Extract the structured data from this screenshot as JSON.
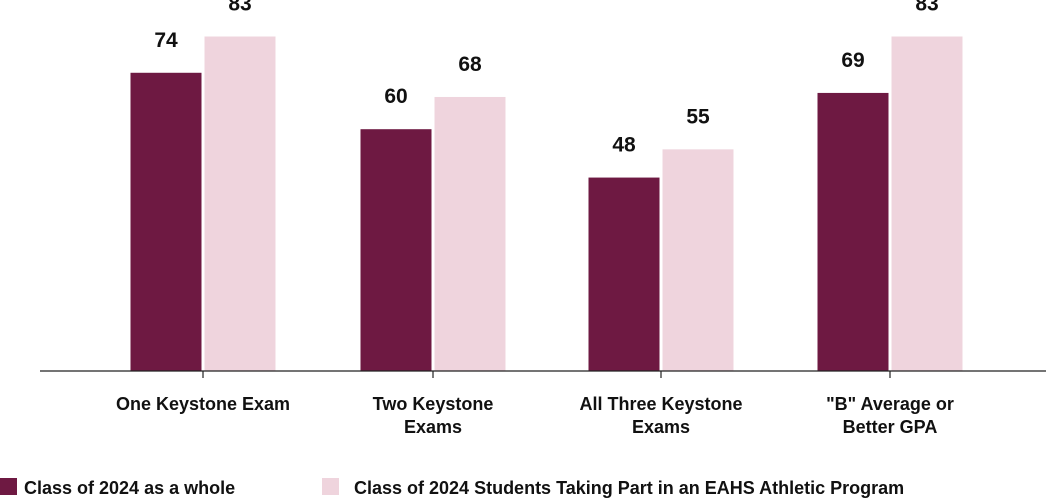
{
  "chart_data": {
    "type": "bar",
    "categories": [
      [
        "One Keystone Exam"
      ],
      [
        "Two Keystone",
        "Exams"
      ],
      [
        "All Three Keystone",
        "Exams"
      ],
      [
        "\"B\" Average or",
        "Better GPA"
      ]
    ],
    "series": [
      {
        "name": "Class of 2024 as a whole",
        "values": [
          74,
          60,
          48,
          69
        ],
        "color": "#6e1942"
      },
      {
        "name": "Class of 2024 Students Taking Part in an EAHS Athletic Program",
        "values": [
          83,
          68,
          55,
          83
        ],
        "color": "#efd4dd"
      }
    ],
    "ylim": [
      0,
      100
    ],
    "grid": false,
    "legend_position": "bottom",
    "title": "",
    "xlabel": "",
    "ylabel": ""
  }
}
